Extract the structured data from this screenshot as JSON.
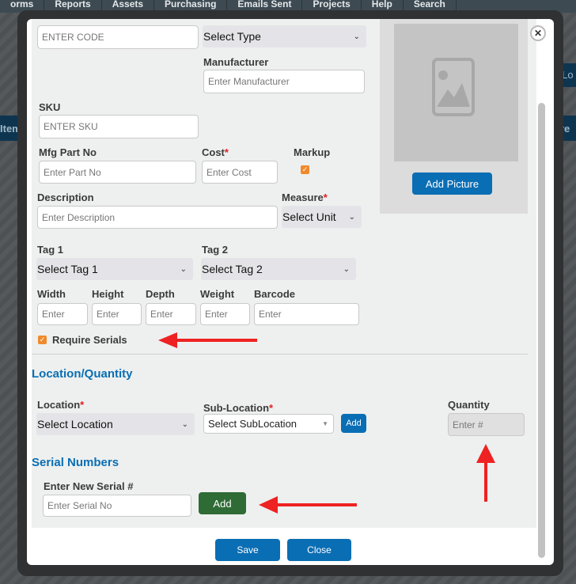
{
  "nav": {
    "items": [
      "orms",
      "Reports",
      "Assets",
      "Purchasing",
      "Emails Sent",
      "Projects",
      "Help",
      "Search"
    ]
  },
  "background": {
    "item_header": "Item",
    "ure_header": "ure",
    "by_lo": "y Lo"
  },
  "form": {
    "code_placeholder": "ENTER CODE",
    "type_select": "Select Type",
    "manufacturer_label": "Manufacturer",
    "manufacturer_placeholder": "Enter Manufacturer",
    "sku_label": "SKU",
    "sku_placeholder": "ENTER SKU",
    "mfg_label": "Mfg Part No",
    "mfg_placeholder": "Enter Part No",
    "cost_label": "Cost",
    "cost_placeholder": "Enter Cost",
    "markup_label": "Markup",
    "markup_checked": true,
    "description_label": "Description",
    "description_placeholder": "Enter Description",
    "measure_label": "Measure",
    "measure_select": "Select Unit",
    "tag1_label": "Tag 1",
    "tag1_select": "Select Tag 1",
    "tag2_label": "Tag 2",
    "tag2_select": "Select Tag 2",
    "width_label": "Width",
    "height_label": "Height",
    "depth_label": "Depth",
    "weight_label": "Weight",
    "barcode_label": "Barcode",
    "enter_placeholder": "Enter",
    "require_serials_label": "Require Serials",
    "require_serials_checked": true,
    "required_mark": "*"
  },
  "picture": {
    "add_label": "Add Picture",
    "icon": "image-placeholder-icon"
  },
  "location": {
    "heading": "Location/Quantity",
    "location_label": "Location",
    "location_select": "Select Location",
    "sublocation_label": "Sub-Location",
    "sublocation_select": "Select SubLocation",
    "add_label": "Add",
    "quantity_label": "Quantity",
    "quantity_placeholder": "Enter #"
  },
  "serials": {
    "heading": "Serial Numbers",
    "new_label": "Enter New Serial #",
    "placeholder": "Enter Serial No",
    "add_label": "Add"
  },
  "footer": {
    "save": "Save",
    "close": "Close"
  },
  "colors": {
    "primary": "#0a6eb4",
    "success": "#2f6b35",
    "checkbox": "#f08a2c",
    "annotation_arrow": "#ee2222"
  }
}
